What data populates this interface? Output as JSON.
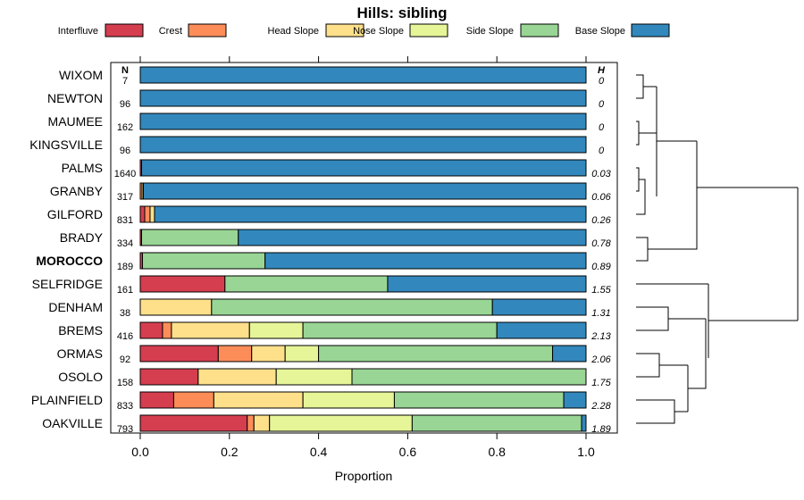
{
  "chart_data": {
    "type": "bar",
    "orientation": "horizontal",
    "stacked": true,
    "title": "Hills: sibling",
    "xlabel": "Proportion",
    "ylabel": "",
    "xlim": [
      0,
      1
    ],
    "x_ticks": [
      "0.0",
      "0.2",
      "0.4",
      "0.6",
      "0.8",
      "1.0"
    ],
    "x_tick_values": [
      0,
      0.2,
      0.4,
      0.6,
      0.8,
      1.0
    ],
    "n_header": "N",
    "h_header": "H",
    "legend": [
      {
        "name": "Interfluve",
        "color": "#D53E4F"
      },
      {
        "name": "Crest",
        "color": "#FC8D59"
      },
      {
        "name": "Head Slope",
        "color": "#FEE08B"
      },
      {
        "name": "Nose Slope",
        "color": "#E6F598"
      },
      {
        "name": "Side Slope",
        "color": "#99D594"
      },
      {
        "name": "Base Slope",
        "color": "#3288BD"
      }
    ],
    "rows": [
      {
        "name": "WIXOM",
        "bold": false,
        "n": "7",
        "h": "0",
        "values": [
          0,
          0,
          0,
          0,
          0,
          1.0
        ]
      },
      {
        "name": "NEWTON",
        "bold": false,
        "n": "96",
        "h": "0",
        "values": [
          0,
          0,
          0,
          0,
          0,
          1.0
        ]
      },
      {
        "name": "MAUMEE",
        "bold": false,
        "n": "162",
        "h": "0",
        "values": [
          0,
          0,
          0,
          0,
          0,
          1.0
        ]
      },
      {
        "name": "KINGSVILLE",
        "bold": false,
        "n": "96",
        "h": "0",
        "values": [
          0,
          0,
          0,
          0,
          0,
          1.0
        ]
      },
      {
        "name": "PALMS",
        "bold": false,
        "n": "1640",
        "h": "0.03",
        "values": [
          0.003,
          0,
          0,
          0,
          0,
          0.997
        ]
      },
      {
        "name": "GRANBY",
        "bold": false,
        "n": "317",
        "h": "0.06",
        "values": [
          0,
          0.004,
          0.003,
          0,
          0,
          0.993
        ]
      },
      {
        "name": "GILFORD",
        "bold": false,
        "n": "831",
        "h": "0.26",
        "values": [
          0.01,
          0.012,
          0.01,
          0,
          0,
          0.968
        ]
      },
      {
        "name": "BRADY",
        "bold": false,
        "n": "334",
        "h": "0.78",
        "values": [
          0.003,
          0,
          0,
          0,
          0.217,
          0.78
        ]
      },
      {
        "name": "MOROCCO",
        "bold": true,
        "n": "189",
        "h": "0.89",
        "values": [
          0.005,
          0,
          0,
          0,
          0.275,
          0.72
        ]
      },
      {
        "name": "SELFRIDGE",
        "bold": false,
        "n": "161",
        "h": "1.55",
        "values": [
          0.19,
          0,
          0,
          0,
          0.365,
          0.445
        ]
      },
      {
        "name": "DENHAM",
        "bold": false,
        "n": "38",
        "h": "1.31",
        "values": [
          0,
          0,
          0.16,
          0,
          0.63,
          0.21
        ]
      },
      {
        "name": "BREMS",
        "bold": false,
        "n": "416",
        "h": "2.13",
        "values": [
          0.05,
          0.02,
          0.175,
          0.12,
          0.435,
          0.2
        ]
      },
      {
        "name": "ORMAS",
        "bold": false,
        "n": "92",
        "h": "2.06",
        "values": [
          0.175,
          0.075,
          0.075,
          0.075,
          0.525,
          0.075
        ]
      },
      {
        "name": "OSOLO",
        "bold": false,
        "n": "158",
        "h": "1.75",
        "values": [
          0.13,
          0,
          0.175,
          0.17,
          0.525,
          0
        ]
      },
      {
        "name": "PLAINFIELD",
        "bold": false,
        "n": "833",
        "h": "2.28",
        "values": [
          0.075,
          0.09,
          0.2,
          0.205,
          0.38,
          0.05
        ]
      },
      {
        "name": "OAKVILLE",
        "bold": false,
        "n": "793",
        "h": "1.89",
        "values": [
          0.24,
          0.015,
          0.035,
          0.32,
          0.38,
          0.01
        ]
      }
    ]
  }
}
